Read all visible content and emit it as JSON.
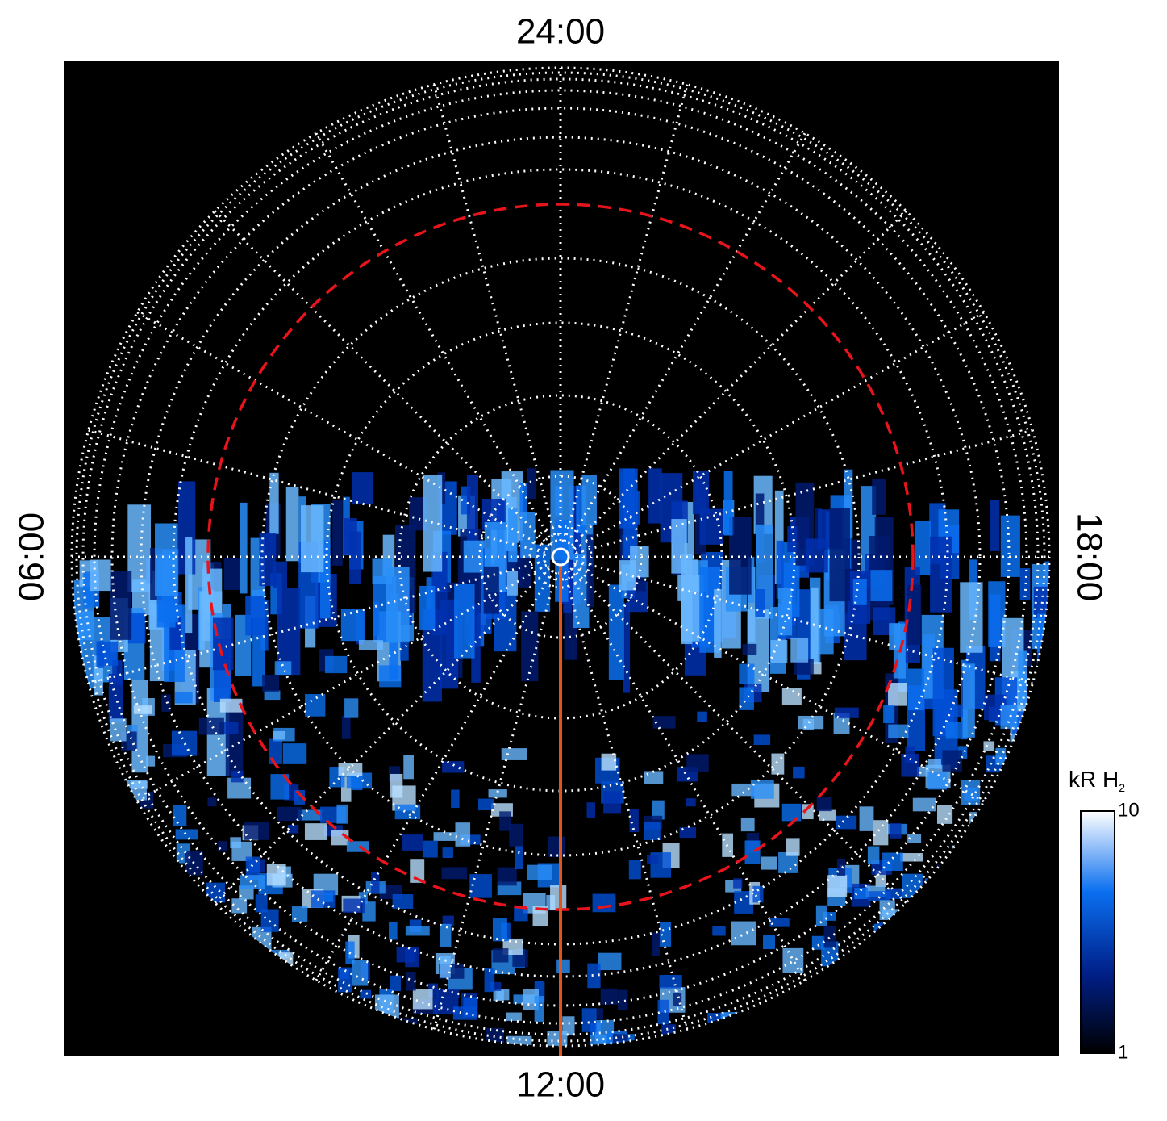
{
  "labels": {
    "top": "24:00",
    "left": "06:00",
    "right": "18:00",
    "bottom": "12:00"
  },
  "colorbar": {
    "title": "kR H",
    "title_subscript": "2",
    "scale": "log",
    "lim": [
      1,
      10
    ],
    "ticks": [
      1,
      10
    ],
    "colors": [
      "#000000",
      "#00208a",
      "#0a6ff0",
      "#ffffff"
    ]
  }
}
